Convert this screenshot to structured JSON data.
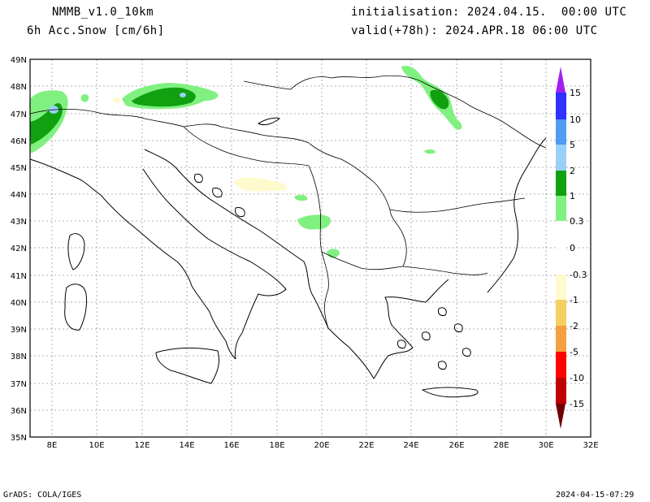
{
  "header": {
    "model": "NMMB_v1.0_10km",
    "variable": "6h Acc.Snow [cm/6h]",
    "init": "initialisation: 2024.04.15.  00:00 UTC",
    "valid": "valid(+78h): 2024.APR.18 06:00 UTC"
  },
  "map": {
    "lon_labels": [
      "8E",
      "10E",
      "12E",
      "14E",
      "16E",
      "18E",
      "20E",
      "22E",
      "24E",
      "26E",
      "28E",
      "30E",
      "32E"
    ],
    "lat_labels": [
      "49N",
      "48N",
      "47N",
      "46N",
      "45N",
      "44N",
      "43N",
      "42N",
      "41N",
      "40N",
      "39N",
      "38N",
      "37N",
      "36N",
      "35N"
    ]
  },
  "legend": {
    "labels": [
      "15",
      "10",
      "5",
      "2",
      "1",
      "0.3",
      "0",
      "-0.3",
      "-1",
      "-2",
      "-5",
      "-10",
      "-15"
    ],
    "colors": [
      "#a020f0",
      "#3030ff",
      "#4f9cf0",
      "#9ad0f8",
      "#10a010",
      "#80f080",
      "#ffffff",
      "#fffacd",
      "#f5d060",
      "#f5a040",
      "#ff7030",
      "#ff0000",
      "#c00000",
      "#700000"
    ]
  },
  "footer": {
    "left": "GrADS: COLA/IGES",
    "right": "2024-04-15-07:29"
  }
}
